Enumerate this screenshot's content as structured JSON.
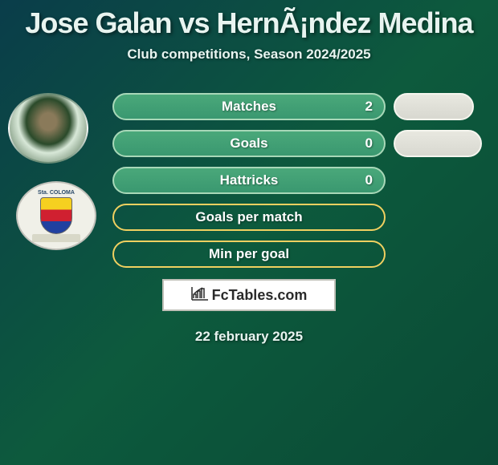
{
  "title": "Jose Galan vs HernÃ¡ndez Medina",
  "subtitle": "Club competitions, Season 2024/2025",
  "date": "22 february 2025",
  "logo": {
    "text": "FcTables.com"
  },
  "colors": {
    "left_fill": "#4aa87a",
    "left_border": "#a8d8b8",
    "right_fill": "#e8e8e0",
    "right_border": "#f5f5ee",
    "empty_border_left": "#f0d060",
    "empty_border_right": "#f0f0e8"
  },
  "stats": [
    {
      "label": "Matches",
      "left_value": "2",
      "left_full": true,
      "right_full": true,
      "right_width": 100
    },
    {
      "label": "Goals",
      "left_value": "0",
      "left_full": true,
      "right_full": true,
      "right_width": 110
    },
    {
      "label": "Hattricks",
      "left_value": "0",
      "left_full": true,
      "right_full": false,
      "right_width": 0
    },
    {
      "label": "Goals per match",
      "left_value": "",
      "left_full": false,
      "right_full": false,
      "right_width": 0
    },
    {
      "label": "Min per goal",
      "left_value": "",
      "left_full": false,
      "right_full": false,
      "right_width": 0
    }
  ]
}
